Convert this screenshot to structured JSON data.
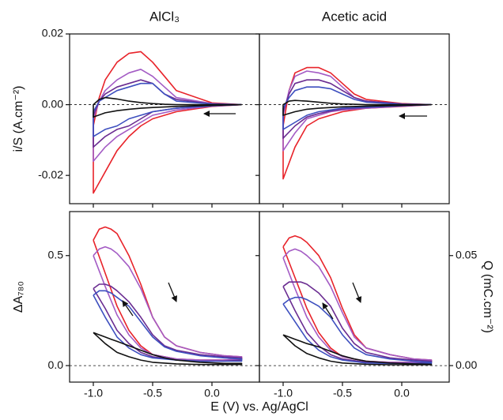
{
  "chart_data": [
    {
      "type": "line",
      "title": "AlCl₃",
      "ylabel": "i/S (A.cm⁻²)",
      "x": [
        0.25,
        0,
        -0.3,
        -0.5,
        -0.6,
        -0.7,
        -0.8,
        -0.9,
        -1.0,
        -1.0,
        -0.95,
        -0.9,
        -0.8,
        -0.7,
        -0.6,
        -0.5,
        -0.4,
        -0.3,
        0,
        0.25
      ],
      "xlim": [
        -1.2,
        0.4
      ],
      "xticks": [
        -1,
        -0.5,
        0
      ],
      "ylim": [
        -0.028,
        0.02
      ],
      "yticks": [
        0.02,
        {
          "value": 0,
          "label": "0.00"
        },
        -0.02
      ],
      "zero_line": true,
      "series": [
        {
          "color": "#e8232a",
          "values": [
            0,
            -0.0005,
            -0.002,
            -0.004,
            -0.006,
            -0.009,
            -0.013,
            -0.019,
            -0.025,
            -0.006,
            0.002,
            0.007,
            0.012,
            0.0145,
            0.015,
            0.012,
            0.008,
            0.004,
            0.0005,
            0
          ]
        },
        {
          "color": "#a35bc4",
          "values": [
            0,
            -0.0004,
            -0.0015,
            -0.003,
            -0.005,
            -0.007,
            -0.009,
            -0.012,
            -0.016,
            -0.004,
            0.001,
            0.004,
            0.007,
            0.009,
            0.01,
            0.008,
            0.005,
            0.002,
            0.0003,
            0
          ]
        },
        {
          "color": "#6a2c91",
          "values": [
            0,
            -0.0003,
            -0.001,
            -0.002,
            -0.004,
            -0.006,
            -0.007,
            -0.009,
            -0.012,
            -0.003,
            0.001,
            0.003,
            0.005,
            0.006,
            0.007,
            0.006,
            0.003,
            0.0015,
            0.0002,
            0
          ]
        },
        {
          "color": "#3d4fbf",
          "values": [
            0,
            -0.0003,
            -0.001,
            -0.002,
            -0.003,
            -0.004,
            -0.006,
            -0.007,
            -0.009,
            -0.002,
            0.001,
            0.002,
            0.004,
            0.005,
            0.006,
            0.006,
            0.003,
            0.001,
            0.0002,
            0
          ]
        },
        {
          "color": "#111111",
          "values": [
            0,
            -0.0002,
            -0.0005,
            -0.0008,
            -0.001,
            -0.0013,
            -0.0017,
            -0.0023,
            -0.0035,
            0,
            0.0015,
            0.002,
            0.0016,
            0.001,
            0.0006,
            0.0003,
            0.0001,
            0,
            0,
            0
          ]
        }
      ]
    },
    {
      "type": "line",
      "title": "Acetic acid",
      "x": [
        0.25,
        0,
        -0.3,
        -0.5,
        -0.6,
        -0.7,
        -0.8,
        -0.9,
        -1.0,
        -1.0,
        -0.95,
        -0.9,
        -0.8,
        -0.7,
        -0.6,
        -0.5,
        -0.4,
        -0.3,
        0,
        0.25
      ],
      "xlim": [
        -1.2,
        0.4
      ],
      "xticks": [
        -1,
        -0.5,
        0
      ],
      "ylim": [
        -0.028,
        0.02
      ],
      "yticks": [
        0.02,
        0,
        -0.02
      ],
      "zero_line": true,
      "series": [
        {
          "color": "#e8232a",
          "values": [
            0,
            -0.0005,
            -0.001,
            -0.002,
            -0.003,
            -0.004,
            -0.006,
            -0.012,
            -0.021,
            -0.006,
            0.004,
            0.009,
            0.0105,
            0.0105,
            0.009,
            0.006,
            0.003,
            0.0015,
            0.0003,
            0
          ]
        },
        {
          "color": "#a35bc4",
          "values": [
            0,
            -0.0004,
            -0.001,
            -0.0015,
            -0.002,
            -0.003,
            -0.004,
            -0.008,
            -0.013,
            -0.003,
            0.004,
            0.008,
            0.0095,
            0.009,
            0.008,
            0.005,
            0.002,
            0.001,
            0.0002,
            0
          ]
        },
        {
          "color": "#6a2c91",
          "values": [
            0,
            -0.0003,
            -0.0008,
            -0.0012,
            -0.0018,
            -0.0025,
            -0.0035,
            -0.006,
            -0.0095,
            -0.002,
            0.003,
            0.006,
            0.007,
            0.007,
            0.006,
            0.004,
            0.002,
            0.001,
            0.0002,
            0
          ]
        },
        {
          "color": "#3d4fbf",
          "values": [
            0,
            -0.0003,
            -0.0007,
            -0.001,
            -0.0015,
            -0.002,
            -0.003,
            -0.005,
            -0.007,
            -0.001,
            0.002,
            0.004,
            0.005,
            0.005,
            0.0045,
            0.003,
            0.0015,
            0.0007,
            0.0001,
            0
          ]
        },
        {
          "color": "#111111",
          "values": [
            0,
            -0.0002,
            -0.0004,
            -0.0006,
            -0.0008,
            -0.001,
            -0.0013,
            -0.002,
            -0.003,
            0,
            0.001,
            0.0012,
            0.001,
            0.0007,
            0.0004,
            0.0002,
            0.0001,
            0,
            0,
            0
          ]
        }
      ]
    },
    {
      "type": "line",
      "ylabel": "ΔA₇₈₀",
      "xlabel": "E (V) vs. Ag/AgCl",
      "x": [
        -1.0,
        -0.95,
        -0.9,
        -0.85,
        -0.8,
        -0.7,
        -0.6,
        -0.5,
        -0.4,
        -0.3,
        -0.1,
        0.1,
        0.25,
        0.25,
        0.1,
        -0.1,
        -0.3,
        -0.5,
        -0.6,
        -0.7,
        -0.8,
        -0.9,
        -1.0
      ],
      "xlim": [
        -1.2,
        0.4
      ],
      "xticks": [
        {
          "value": -1,
          "label": "-1.0"
        },
        -0.5,
        {
          "value": 0,
          "label": "0.0"
        }
      ],
      "ylim": [
        -0.075,
        0.7
      ],
      "yticks": [
        {
          "value": 0,
          "label": "0.0"
        },
        0.5
      ],
      "zero_line": true,
      "series": [
        {
          "color": "#e8232a",
          "values": [
            0.57,
            0.62,
            0.63,
            0.62,
            0.6,
            0.5,
            0.37,
            0.22,
            0.13,
            0.09,
            0.06,
            0.045,
            0.04,
            0.03,
            0.025,
            0.025,
            0.03,
            0.05,
            0.09,
            0.16,
            0.27,
            0.42,
            0.57
          ]
        },
        {
          "color": "#a35bc4",
          "values": [
            0.5,
            0.53,
            0.54,
            0.53,
            0.51,
            0.45,
            0.35,
            0.22,
            0.13,
            0.09,
            0.06,
            0.045,
            0.04,
            0.03,
            0.025,
            0.025,
            0.03,
            0.05,
            0.08,
            0.14,
            0.23,
            0.36,
            0.5
          ]
        },
        {
          "color": "#6a2c91",
          "values": [
            0.35,
            0.37,
            0.37,
            0.36,
            0.34,
            0.29,
            0.22,
            0.14,
            0.09,
            0.07,
            0.05,
            0.04,
            0.035,
            0.025,
            0.02,
            0.02,
            0.025,
            0.04,
            0.06,
            0.1,
            0.16,
            0.26,
            0.35
          ]
        },
        {
          "color": "#3d4fbf",
          "values": [
            0.32,
            0.34,
            0.34,
            0.33,
            0.31,
            0.27,
            0.2,
            0.13,
            0.085,
            0.065,
            0.045,
            0.035,
            0.03,
            0.02,
            0.02,
            0.02,
            0.025,
            0.035,
            0.05,
            0.08,
            0.13,
            0.22,
            0.32
          ]
        },
        {
          "color": "#111111",
          "values": [
            0.15,
            0.14,
            0.13,
            0.12,
            0.11,
            0.09,
            0.07,
            0.05,
            0.035,
            0.025,
            0.015,
            0.01,
            0.01,
            0.005,
            0.005,
            0.005,
            0.008,
            0.015,
            0.025,
            0.04,
            0.06,
            0.1,
            0.15
          ]
        }
      ]
    },
    {
      "type": "line",
      "y2label": "Q (mC.cm⁻²)",
      "x": [
        -1.0,
        -0.95,
        -0.9,
        -0.85,
        -0.8,
        -0.7,
        -0.6,
        -0.5,
        -0.4,
        -0.3,
        -0.1,
        0.1,
        0.25,
        0.25,
        0.1,
        -0.1,
        -0.3,
        -0.5,
        -0.6,
        -0.7,
        -0.8,
        -0.9,
        -1.0
      ],
      "xlim": [
        -1.2,
        0.4
      ],
      "xticks": [
        {
          "value": -1,
          "label": "-1.0"
        },
        -0.5,
        {
          "value": 0,
          "label": "0.0"
        }
      ],
      "ylim": [
        -0.075,
        0.7
      ],
      "yticks": [
        0,
        0.5
      ],
      "zero_line": true,
      "y2lim": [
        -0.0075,
        0.07
      ],
      "y2ticks": [
        {
          "value": 0,
          "label": "0.00"
        },
        0.05
      ],
      "series": [
        {
          "color": "#e8232a",
          "values": [
            0.54,
            0.58,
            0.59,
            0.58,
            0.56,
            0.5,
            0.4,
            0.26,
            0.14,
            0.08,
            0.05,
            0.03,
            0.025,
            0.02,
            0.015,
            0.015,
            0.02,
            0.04,
            0.08,
            0.15,
            0.26,
            0.4,
            0.54
          ]
        },
        {
          "color": "#a35bc4",
          "values": [
            0.49,
            0.52,
            0.53,
            0.52,
            0.5,
            0.45,
            0.36,
            0.24,
            0.13,
            0.08,
            0.05,
            0.03,
            0.025,
            0.02,
            0.015,
            0.015,
            0.02,
            0.04,
            0.07,
            0.13,
            0.22,
            0.35,
            0.49
          ]
        },
        {
          "color": "#6a2c91",
          "values": [
            0.36,
            0.38,
            0.38,
            0.38,
            0.37,
            0.33,
            0.27,
            0.17,
            0.1,
            0.06,
            0.035,
            0.025,
            0.02,
            0.015,
            0.01,
            0.01,
            0.015,
            0.03,
            0.05,
            0.09,
            0.15,
            0.25,
            0.36
          ]
        },
        {
          "color": "#3d4fbf",
          "values": [
            0.28,
            0.3,
            0.31,
            0.31,
            0.3,
            0.27,
            0.22,
            0.14,
            0.08,
            0.05,
            0.03,
            0.02,
            0.015,
            0.01,
            0.01,
            0.01,
            0.012,
            0.025,
            0.04,
            0.07,
            0.12,
            0.2,
            0.28
          ]
        },
        {
          "color": "#111111",
          "values": [
            0.14,
            0.13,
            0.12,
            0.11,
            0.1,
            0.085,
            0.065,
            0.045,
            0.03,
            0.02,
            0.012,
            0.008,
            0.006,
            0.004,
            0.004,
            0.004,
            0.006,
            0.012,
            0.02,
            0.035,
            0.055,
            0.09,
            0.14
          ]
        }
      ]
    }
  ]
}
